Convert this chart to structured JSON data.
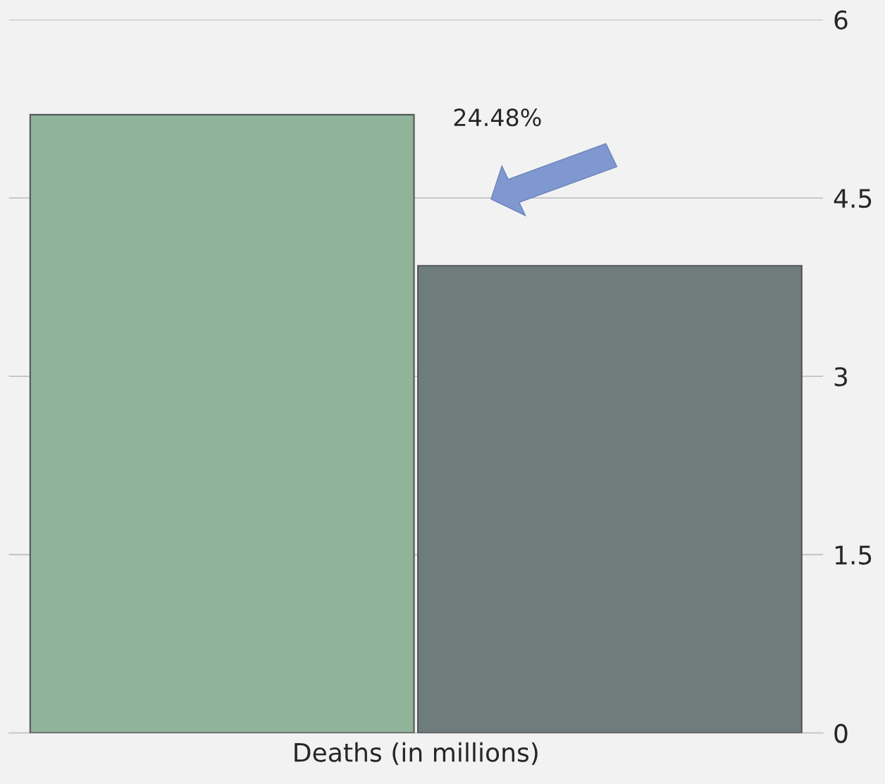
{
  "chart_data": {
    "type": "bar",
    "categories": [
      null,
      null
    ],
    "values": [
      5.2,
      3.93
    ],
    "colors": [
      "#8fb49a",
      "#6e7c7c"
    ],
    "xlabel": "Deaths (in millions)",
    "annotations": [
      "24.48%"
    ],
    "ylim": [
      0,
      6
    ],
    "yticks": [
      0,
      1.5,
      3,
      4.5,
      6
    ],
    "grid": "y"
  }
}
